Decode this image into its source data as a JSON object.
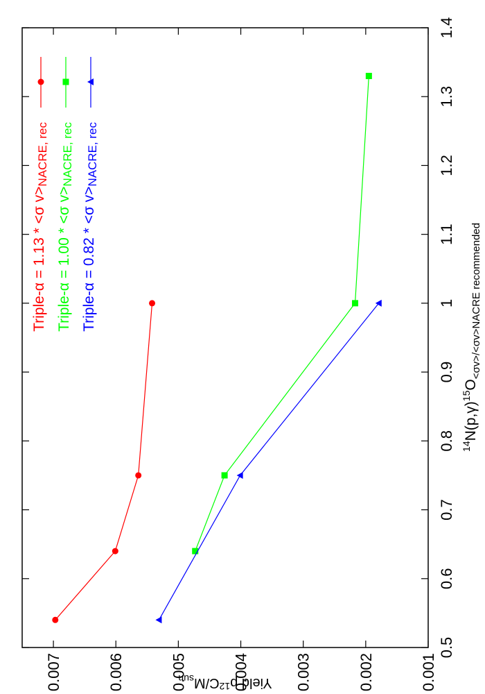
{
  "chart_data": {
    "type": "line",
    "orientation": "rotated-90-clockwise",
    "xlabel": {
      "base": "N(p,γ)",
      "pre_sup": "14",
      "mid_sup": "15",
      "tail": "O",
      "sub": "<σv>/<σv>NACRE recommended"
    },
    "ylabel": {
      "main": "Yield p",
      "sup": "12",
      "mid": "C/M",
      "sub": "sun"
    },
    "xlim": [
      0.5,
      1.4
    ],
    "ylim": [
      0.001,
      0.0075
    ],
    "x_ticks": [
      0.5,
      0.6,
      0.7,
      0.8,
      0.9,
      1.0,
      1.1,
      1.2,
      1.3,
      1.4
    ],
    "x_tick_labels": [
      "0.5",
      "0.6",
      "0.7",
      "0.8",
      "0.9",
      "1",
      "1.1",
      "1.2",
      "1.3",
      "1.4"
    ],
    "y_ticks": [
      0.001,
      0.002,
      0.003,
      0.004,
      0.005,
      0.006,
      0.007
    ],
    "y_tick_labels": [
      "0.001",
      "0.002",
      "0.003",
      "0.004",
      "0.005",
      "0.006",
      "0.007"
    ],
    "grid": false,
    "legend_position": "top-left",
    "series": [
      {
        "name": "Triple-α = 1.13 * <σ v>NACRE, rec",
        "name_main": "Triple-α = 1.13 * <σ v>",
        "name_sub": "NACRE, rec",
        "color": "#ff0000",
        "marker": "circle",
        "x": [
          0.54,
          0.64,
          0.75,
          1.0
        ],
        "y": [
          0.00697,
          0.00601,
          0.00564,
          0.00542
        ]
      },
      {
        "name": "Triple-α = 1.00 * <σ v>NACRE, rec",
        "name_main": "Triple-α = 1.00 * <σ v>",
        "name_sub": "NACRE, rec",
        "color": "#00ff00",
        "marker": "square",
        "x": [
          0.64,
          0.75,
          1.0,
          1.33
        ],
        "y": [
          0.00473,
          0.00426,
          0.00217,
          0.00195
        ]
      },
      {
        "name": "Triple-α = 0.82 * <σ v>NACRE, rec",
        "name_main": "Triple-α = 0.82 * <σ v>",
        "name_sub": "NACRE, rec",
        "color": "#0000ff",
        "marker": "triangle",
        "x": [
          0.54,
          0.75,
          1.0
        ],
        "y": [
          0.00531,
          0.00401,
          0.00179
        ]
      }
    ]
  }
}
